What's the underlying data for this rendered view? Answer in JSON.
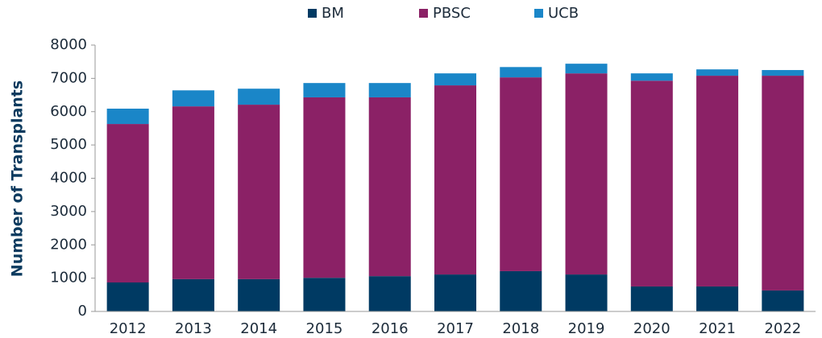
{
  "chart_data": {
    "type": "stacked-bar",
    "y_label": "Number of Transplants",
    "categories": [
      "2012",
      "2013",
      "2014",
      "2015",
      "2016",
      "2017",
      "2018",
      "2019",
      "2020",
      "2021",
      "2022"
    ],
    "series": [
      {
        "name": "BM",
        "color": "#003a63",
        "values": [
          870,
          970,
          970,
          1010,
          1060,
          1110,
          1210,
          1110,
          750,
          750,
          630
        ]
      },
      {
        "name": "PBSC",
        "color": "#8b2166",
        "values": [
          4760,
          5190,
          5240,
          5420,
          5370,
          5680,
          5820,
          6040,
          6180,
          6330,
          6450
        ]
      },
      {
        "name": "UCB",
        "color": "#1a86c8",
        "values": [
          460,
          480,
          480,
          430,
          430,
          360,
          310,
          290,
          220,
          190,
          170
        ]
      }
    ],
    "ylim": [
      0,
      8000
    ],
    "yticks": [
      0,
      1000,
      2000,
      3000,
      4000,
      5000,
      6000,
      7000,
      8000
    ],
    "grid": false
  }
}
